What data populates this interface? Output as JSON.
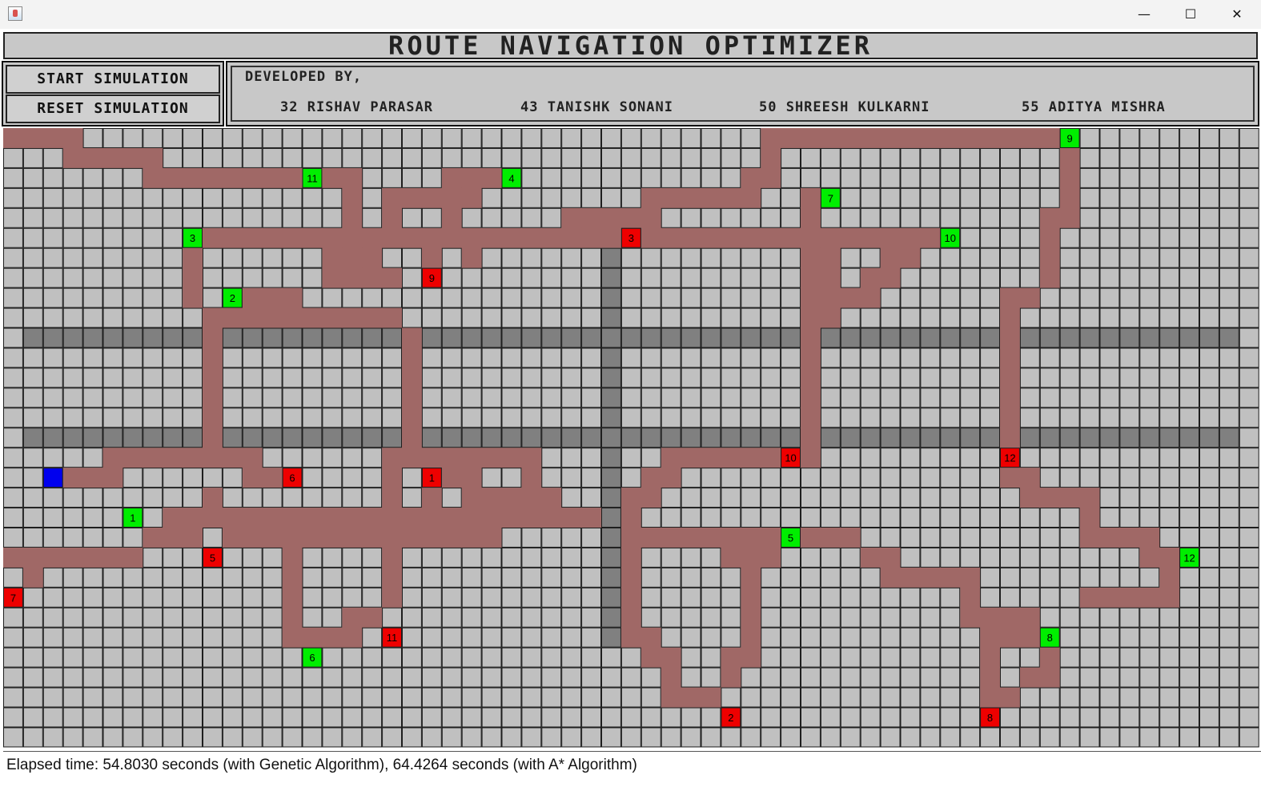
{
  "window": {
    "controls": {
      "minimize": "—",
      "maximize": "☐",
      "close": "✕"
    },
    "icon": "java-app-icon"
  },
  "header": {
    "title": "ROUTE NAVIGATION OPTIMIZER"
  },
  "buttons": {
    "start": "START SIMULATION",
    "reset": "RESET SIMULATION"
  },
  "developers": {
    "label": "DEVELOPED BY,",
    "members": [
      "32 RISHAV PARASAR",
      "43 TANISHK SONANI",
      "50 SHREESH KULKARNI",
      "55 ADITYA MISHRA"
    ]
  },
  "status": {
    "text": "Elapsed time: 54.8030 seconds (with Genetic Algorithm), 64.4264 seconds (with A* Algorithm)"
  },
  "colors": {
    "empty": "#c0c0c0",
    "gridline": "#1e1e1e",
    "road": "#808080",
    "path": "#a06866",
    "pickup": "#00ee00",
    "dropoff": "#ee0000",
    "vehicle": "#0000ee"
  },
  "grid": {
    "cols": 63,
    "rows": 31,
    "road_rows": [
      10,
      15
    ],
    "road_row_gaps": [
      0,
      62
    ],
    "road_col": 30,
    "road_col_span": [
      6,
      25
    ],
    "vehicle": [
      2,
      17
    ],
    "path_runs": [
      [
        0,
        0,
        3
      ],
      [
        1,
        3,
        7
      ],
      [
        2,
        7,
        15
      ],
      [
        2,
        16,
        17
      ],
      [
        3,
        17,
        17
      ],
      [
        4,
        17,
        17
      ],
      [
        5,
        17,
        19
      ],
      [
        6,
        16,
        18
      ],
      [
        7,
        16,
        19
      ],
      [
        2,
        22,
        24
      ],
      [
        3,
        19,
        23
      ],
      [
        4,
        19,
        19
      ],
      [
        4,
        22,
        22
      ],
      [
        5,
        22,
        23
      ],
      [
        6,
        23,
        23
      ],
      [
        5,
        10,
        30
      ],
      [
        5,
        32,
        46
      ],
      [
        6,
        9,
        9
      ],
      [
        7,
        9,
        9
      ],
      [
        8,
        9,
        9
      ],
      [
        8,
        12,
        14
      ],
      [
        9,
        10,
        19
      ],
      [
        6,
        21,
        21
      ],
      [
        4,
        28,
        32
      ],
      [
        3,
        32,
        37
      ],
      [
        2,
        37,
        38
      ],
      [
        1,
        38,
        38
      ],
      [
        0,
        38,
        52
      ],
      [
        1,
        53,
        53
      ],
      [
        2,
        53,
        53
      ],
      [
        3,
        53,
        53
      ],
      [
        4,
        52,
        53
      ],
      [
        5,
        52,
        52
      ],
      [
        6,
        52,
        52
      ],
      [
        7,
        52,
        52
      ],
      [
        8,
        50,
        51
      ],
      [
        3,
        40,
        40
      ],
      [
        4,
        40,
        40
      ],
      [
        6,
        40,
        41
      ],
      [
        7,
        40,
        41
      ],
      [
        8,
        40,
        43
      ],
      [
        9,
        40,
        41
      ],
      [
        6,
        44,
        45
      ],
      [
        7,
        43,
        44
      ],
      [
        10,
        40,
        40
      ],
      [
        11,
        40,
        40
      ],
      [
        12,
        40,
        40
      ],
      [
        13,
        40,
        40
      ],
      [
        14,
        40,
        40
      ],
      [
        15,
        40,
        40
      ],
      [
        16,
        33,
        38
      ],
      [
        16,
        40,
        40
      ],
      [
        17,
        32,
        33
      ],
      [
        18,
        31,
        32
      ],
      [
        19,
        31,
        31
      ],
      [
        20,
        31,
        38
      ],
      [
        9,
        50,
        50
      ],
      [
        10,
        50,
        50
      ],
      [
        11,
        50,
        50
      ],
      [
        12,
        50,
        50
      ],
      [
        13,
        50,
        50
      ],
      [
        14,
        50,
        50
      ],
      [
        15,
        50,
        50
      ],
      [
        16,
        50,
        50
      ],
      [
        17,
        50,
        51
      ],
      [
        18,
        51,
        54
      ],
      [
        19,
        54,
        54
      ],
      [
        20,
        54,
        57
      ],
      [
        21,
        57,
        58
      ],
      [
        22,
        58,
        58
      ],
      [
        23,
        54,
        58
      ],
      [
        10,
        10,
        10
      ],
      [
        11,
        10,
        10
      ],
      [
        12,
        10,
        10
      ],
      [
        13,
        10,
        10
      ],
      [
        14,
        10,
        10
      ],
      [
        15,
        10,
        10
      ],
      [
        16,
        5,
        12
      ],
      [
        17,
        3,
        5
      ],
      [
        17,
        12,
        13
      ],
      [
        18,
        10,
        10
      ],
      [
        19,
        8,
        29
      ],
      [
        20,
        7,
        9
      ],
      [
        20,
        11,
        24
      ],
      [
        21,
        0,
        6
      ],
      [
        22,
        1,
        1
      ],
      [
        10,
        20,
        20
      ],
      [
        11,
        20,
        20
      ],
      [
        12,
        20,
        20
      ],
      [
        13,
        20,
        20
      ],
      [
        14,
        20,
        20
      ],
      [
        15,
        20,
        20
      ],
      [
        16,
        19,
        26
      ],
      [
        17,
        19,
        19
      ],
      [
        17,
        22,
        23
      ],
      [
        17,
        26,
        26
      ],
      [
        18,
        19,
        19
      ],
      [
        18,
        21,
        21
      ],
      [
        18,
        23,
        27
      ],
      [
        19,
        14,
        21
      ],
      [
        21,
        14,
        14
      ],
      [
        22,
        14,
        14
      ],
      [
        23,
        14,
        14
      ],
      [
        24,
        14,
        14
      ],
      [
        25,
        14,
        17
      ],
      [
        21,
        19,
        19
      ],
      [
        22,
        19,
        19
      ],
      [
        23,
        19,
        19
      ],
      [
        24,
        17,
        18
      ],
      [
        20,
        36,
        42
      ],
      [
        21,
        36,
        38
      ],
      [
        22,
        37,
        37
      ],
      [
        23,
        37,
        37
      ],
      [
        24,
        37,
        37
      ],
      [
        25,
        37,
        37
      ],
      [
        26,
        36,
        37
      ],
      [
        27,
        36,
        36
      ],
      [
        28,
        33,
        35
      ],
      [
        21,
        31,
        31
      ],
      [
        22,
        31,
        31
      ],
      [
        23,
        31,
        31
      ],
      [
        24,
        31,
        31
      ],
      [
        25,
        31,
        32
      ],
      [
        26,
        32,
        33
      ],
      [
        27,
        33,
        33
      ],
      [
        21,
        43,
        44
      ],
      [
        22,
        44,
        48
      ],
      [
        23,
        48,
        48
      ],
      [
        24,
        48,
        51
      ],
      [
        25,
        49,
        52
      ],
      [
        26,
        49,
        49
      ],
      [
        27,
        49,
        49
      ],
      [
        28,
        49,
        50
      ],
      [
        26,
        52,
        52
      ],
      [
        27,
        51,
        52
      ]
    ],
    "pickups": [
      {
        "row": 19,
        "col": 6,
        "label": "1"
      },
      {
        "row": 8,
        "col": 11,
        "label": "2"
      },
      {
        "row": 5,
        "col": 9,
        "label": "3"
      },
      {
        "row": 2,
        "col": 25,
        "label": "4"
      },
      {
        "row": 20,
        "col": 39,
        "label": "5"
      },
      {
        "row": 26,
        "col": 15,
        "label": "6"
      },
      {
        "row": 3,
        "col": 41,
        "label": "7"
      },
      {
        "row": 25,
        "col": 52,
        "label": "8"
      },
      {
        "row": 0,
        "col": 53,
        "label": "9"
      },
      {
        "row": 5,
        "col": 47,
        "label": "10"
      },
      {
        "row": 2,
        "col": 15,
        "label": "11"
      },
      {
        "row": 21,
        "col": 59,
        "label": "12"
      }
    ],
    "dropoffs": [
      {
        "row": 17,
        "col": 21,
        "label": "1"
      },
      {
        "row": 29,
        "col": 36,
        "label": "2"
      },
      {
        "row": 5,
        "col": 31,
        "label": "3"
      },
      {
        "row": 21,
        "col": 10,
        "label": "5"
      },
      {
        "row": 17,
        "col": 14,
        "label": "6"
      },
      {
        "row": 23,
        "col": 0,
        "label": "7"
      },
      {
        "row": 29,
        "col": 49,
        "label": "8"
      },
      {
        "row": 7,
        "col": 21,
        "label": "9"
      },
      {
        "row": 16,
        "col": 39,
        "label": "10"
      },
      {
        "row": 25,
        "col": 19,
        "label": "11"
      },
      {
        "row": 16,
        "col": 50,
        "label": "12"
      }
    ]
  }
}
